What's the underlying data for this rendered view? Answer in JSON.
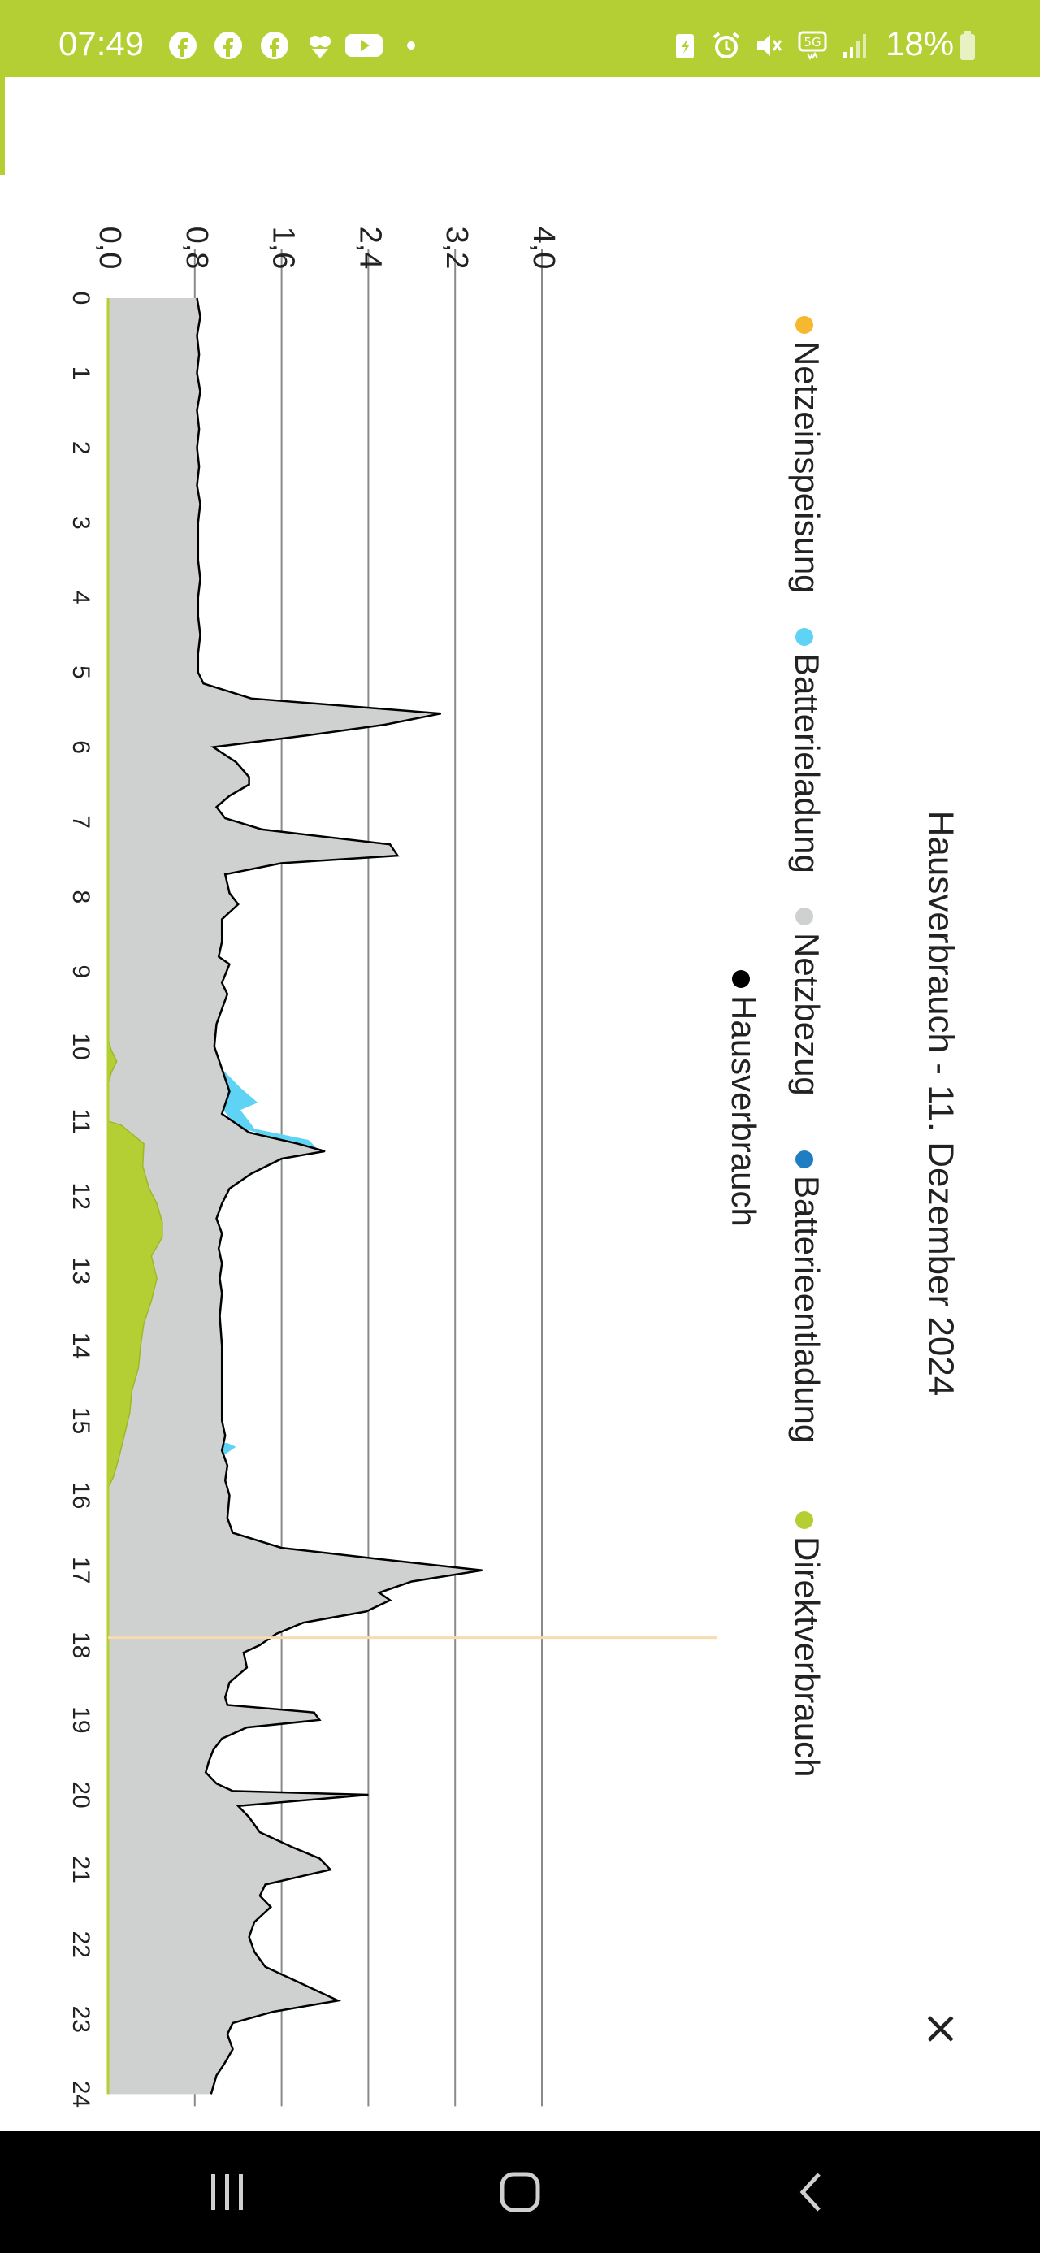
{
  "status_bar": {
    "time": "07:49",
    "battery_percent": "18%",
    "icons": [
      "facebook-icon",
      "facebook-icon",
      "facebook-icon",
      "app-icon",
      "youtube-icon",
      "dot-icon",
      "battery-saver-icon",
      "alarm-icon",
      "mute-icon",
      "5g-icon",
      "signal-icon",
      "battery-icon"
    ],
    "background_color": "#b3cf33"
  },
  "dialog": {
    "close_label": "×"
  },
  "nav_bar": {
    "icons": [
      "recent-apps-icon",
      "home-icon",
      "back-icon"
    ]
  },
  "colors": {
    "netzeinspeisung": "#f5b82e",
    "batterieladung": "#5fd3f5",
    "netzbezug": "#cfd1d1",
    "batterieentladung": "#1f7ec2",
    "direktverbrauch": "#b3cf33",
    "hausverbrauch": "#000000"
  },
  "chart_data": {
    "type": "area",
    "title": "Hausverbrauch - 11. Dezember 2024",
    "legend": [
      {
        "name": "Netzeinspeisung",
        "color": "#f5b82e"
      },
      {
        "name": "Batterieladung",
        "color": "#5fd3f5"
      },
      {
        "name": "Netzbezug",
        "color": "#cfd1d1"
      },
      {
        "name": "Batterieentladung",
        "color": "#1f7ec2"
      },
      {
        "name": "Direktverbrauch",
        "color": "#b3cf33"
      },
      {
        "name": "Hausverbrauch",
        "color": "#000000"
      }
    ],
    "legend_position": "top",
    "orientation": "rotated-90-clockwise",
    "x_ticks": [
      "0",
      "1",
      "2",
      "3",
      "4",
      "5",
      "6",
      "7",
      "8",
      "9",
      "10",
      "11",
      "12",
      "13",
      "14",
      "15",
      "16",
      "17",
      "18",
      "19",
      "20",
      "21",
      "22",
      "23",
      "24"
    ],
    "y_ticks": [
      "0,0",
      "0,8",
      "1,6",
      "2,4",
      "3,2",
      "4,0"
    ],
    "xlim": [
      0,
      24
    ],
    "ylim": [
      0,
      4.0
    ],
    "grid": true,
    "cursor_x": 17.9,
    "series": [
      {
        "name": "Hausverbrauch",
        "points": [
          [
            0,
            0.82
          ],
          [
            0.25,
            0.85
          ],
          [
            0.5,
            0.82
          ],
          [
            0.75,
            0.84
          ],
          [
            1,
            0.82
          ],
          [
            1.25,
            0.85
          ],
          [
            1.5,
            0.82
          ],
          [
            1.75,
            0.84
          ],
          [
            2,
            0.82
          ],
          [
            2.25,
            0.84
          ],
          [
            2.5,
            0.82
          ],
          [
            2.75,
            0.85
          ],
          [
            3,
            0.83
          ],
          [
            3.25,
            0.83
          ],
          [
            3.5,
            0.83
          ],
          [
            3.75,
            0.85
          ],
          [
            4,
            0.83
          ],
          [
            4.25,
            0.83
          ],
          [
            4.5,
            0.85
          ],
          [
            4.75,
            0.83
          ],
          [
            5,
            0.83
          ],
          [
            5.15,
            0.88
          ],
          [
            5.35,
            1.32
          ],
          [
            5.55,
            3.07
          ],
          [
            5.7,
            2.55
          ],
          [
            5.85,
            1.8
          ],
          [
            6.0,
            0.97
          ],
          [
            6.2,
            1.18
          ],
          [
            6.4,
            1.3
          ],
          [
            6.5,
            1.3
          ],
          [
            6.65,
            1.12
          ],
          [
            6.8,
            1.0
          ],
          [
            6.95,
            1.08
          ],
          [
            7.1,
            1.42
          ],
          [
            7.3,
            2.6
          ],
          [
            7.45,
            2.67
          ],
          [
            7.55,
            1.6
          ],
          [
            7.7,
            1.08
          ],
          [
            7.95,
            1.12
          ],
          [
            8.1,
            1.2
          ],
          [
            8.3,
            1.05
          ],
          [
            8.6,
            1.05
          ],
          [
            8.8,
            1.02
          ],
          [
            8.9,
            1.12
          ],
          [
            9.15,
            1.05
          ],
          [
            9.3,
            1.1
          ],
          [
            9.5,
            1.05
          ],
          [
            9.7,
            1.0
          ],
          [
            10,
            0.98
          ],
          [
            10.3,
            1.05
          ],
          [
            10.6,
            1.12
          ],
          [
            10.9,
            1.05
          ],
          [
            11.0,
            1.15
          ],
          [
            11.15,
            1.3
          ],
          [
            11.3,
            1.75
          ],
          [
            11.4,
            2.0
          ],
          [
            11.5,
            1.6
          ],
          [
            11.7,
            1.32
          ],
          [
            11.9,
            1.12
          ],
          [
            12.1,
            1.05
          ],
          [
            12.3,
            1.0
          ],
          [
            12.5,
            1.05
          ],
          [
            12.7,
            1.02
          ],
          [
            12.9,
            1.05
          ],
          [
            13.1,
            1.03
          ],
          [
            13.3,
            1.05
          ],
          [
            13.6,
            1.03
          ],
          [
            14,
            1.05
          ],
          [
            14.4,
            1.05
          ],
          [
            14.8,
            1.05
          ],
          [
            15.0,
            1.05
          ],
          [
            15.2,
            1.08
          ],
          [
            15.4,
            1.05
          ],
          [
            15.6,
            1.1
          ],
          [
            15.8,
            1.08
          ],
          [
            16.0,
            1.12
          ],
          [
            16.3,
            1.1
          ],
          [
            16.5,
            1.15
          ],
          [
            16.7,
            1.6
          ],
          [
            16.85,
            2.5
          ],
          [
            17.0,
            3.45
          ],
          [
            17.15,
            2.8
          ],
          [
            17.3,
            2.5
          ],
          [
            17.4,
            2.6
          ],
          [
            17.55,
            2.38
          ],
          [
            17.7,
            1.8
          ],
          [
            17.85,
            1.55
          ],
          [
            18.0,
            1.4
          ],
          [
            18.1,
            1.25
          ],
          [
            18.3,
            1.28
          ],
          [
            18.5,
            1.12
          ],
          [
            18.7,
            1.08
          ],
          [
            18.8,
            1.1
          ],
          [
            18.9,
            1.9
          ],
          [
            19.0,
            1.95
          ],
          [
            19.1,
            1.28
          ],
          [
            19.25,
            1.05
          ],
          [
            19.4,
            0.97
          ],
          [
            19.55,
            0.93
          ],
          [
            19.7,
            0.9
          ],
          [
            19.85,
            1.0
          ],
          [
            19.95,
            1.15
          ],
          [
            20.0,
            2.4
          ],
          [
            20.15,
            1.2
          ],
          [
            20.3,
            1.3
          ],
          [
            20.5,
            1.4
          ],
          [
            20.7,
            1.7
          ],
          [
            20.85,
            1.95
          ],
          [
            21.0,
            2.05
          ],
          [
            21.2,
            1.45
          ],
          [
            21.35,
            1.4
          ],
          [
            21.5,
            1.5
          ],
          [
            21.7,
            1.35
          ],
          [
            21.9,
            1.3
          ],
          [
            22.1,
            1.35
          ],
          [
            22.3,
            1.45
          ],
          [
            22.5,
            1.75
          ],
          [
            22.75,
            2.12
          ],
          [
            22.9,
            1.52
          ],
          [
            23.05,
            1.15
          ],
          [
            23.2,
            1.1
          ],
          [
            23.4,
            1.15
          ],
          [
            23.6,
            1.07
          ],
          [
            23.75,
            1.0
          ],
          [
            24,
            0.95
          ]
        ]
      },
      {
        "name": "Direktverbrauch",
        "points": [
          [
            9.9,
            0.0
          ],
          [
            10.05,
            0.03
          ],
          [
            10.2,
            0.08
          ],
          [
            10.35,
            0.03
          ],
          [
            10.5,
            0.0
          ],
          [
            11.0,
            0.0
          ],
          [
            11.05,
            0.12
          ],
          [
            11.3,
            0.33
          ],
          [
            11.6,
            0.32
          ],
          [
            11.9,
            0.38
          ],
          [
            12.1,
            0.45
          ],
          [
            12.35,
            0.5
          ],
          [
            12.55,
            0.5
          ],
          [
            12.8,
            0.4
          ],
          [
            13.1,
            0.45
          ],
          [
            13.4,
            0.4
          ],
          [
            13.7,
            0.33
          ],
          [
            14.0,
            0.3
          ],
          [
            14.3,
            0.28
          ],
          [
            14.6,
            0.22
          ],
          [
            14.9,
            0.2
          ],
          [
            15.2,
            0.15
          ],
          [
            15.5,
            0.1
          ],
          [
            15.75,
            0.05
          ],
          [
            15.9,
            0.0
          ]
        ]
      },
      {
        "name": "Batterieladung",
        "points": [
          [
            10.3,
            1.05
          ],
          [
            10.55,
            1.22
          ],
          [
            10.75,
            1.38
          ],
          [
            10.85,
            1.22
          ],
          [
            11.0,
            1.3
          ],
          [
            11.1,
            1.35
          ],
          [
            11.25,
            1.85
          ],
          [
            11.4,
            1.95
          ],
          [
            15.3,
            1.1
          ],
          [
            15.35,
            1.18
          ],
          [
            15.45,
            1.08
          ]
        ]
      }
    ]
  }
}
